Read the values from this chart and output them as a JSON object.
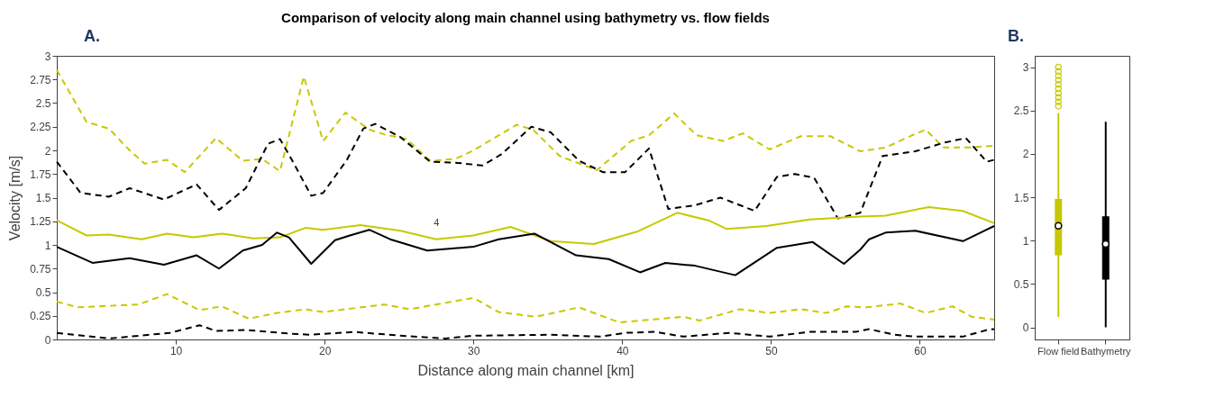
{
  "chart_data": [
    {
      "type": "line",
      "title": "Comparison of velocity along main channel using bathymetry vs. flow fields",
      "xlabel": "Distance along main channel [km]",
      "ylabel": "Velocity [m/s]",
      "annotations": [
        "A.",
        "4"
      ],
      "xlim": [
        2,
        65
      ],
      "ylim": [
        0,
        3
      ],
      "xticks": [
        10,
        20,
        30,
        40,
        50,
        60
      ],
      "yticks": [
        0,
        0.25,
        0.5,
        0.75,
        1,
        1.25,
        1.5,
        1.75,
        2,
        2.25,
        2.5,
        2.75,
        3
      ],
      "series": [
        {
          "color": "#c8c800",
          "line_style": "dashed",
          "x": [
            2,
            4,
            5.5,
            6.9,
            7.9,
            9.4,
            10.6,
            12.7,
            14.5,
            15.8,
            17,
            18.6,
            19.9,
            21.4,
            23,
            24,
            25.5,
            27.1,
            28.8,
            30,
            32.9,
            34,
            35.8,
            38.3,
            40.6,
            41.8,
            43.5,
            45,
            46.8,
            48.1,
            49.9,
            52,
            54,
            56,
            57.7,
            59.5,
            60.4,
            61.6,
            63.3,
            65
          ],
          "values": [
            2.85,
            2.3,
            2.23,
            2,
            1.86,
            1.9,
            1.77,
            2.13,
            1.89,
            1.91,
            1.78,
            2.78,
            2.1,
            2.4,
            2.22,
            2.17,
            2.12,
            1.89,
            1.91,
            2.0,
            2.27,
            2.22,
            1.94,
            1.79,
            2.1,
            2.16,
            2.39,
            2.16,
            2.1,
            2.18,
            2.01,
            2.15,
            2.15,
            1.99,
            2.03,
            2.16,
            2.22,
            2.03,
            2.03,
            2.05
          ]
        },
        {
          "color": "#000000",
          "line_style": "dashed",
          "x": [
            2,
            3.6,
            5.5,
            6.9,
            9.2,
            11.4,
            12.9,
            14.7,
            16.2,
            17,
            17.8,
            19.1,
            19.9,
            21.5,
            22.6,
            23.4,
            25.1,
            27.1,
            28.8,
            30.6,
            31.9,
            33.9,
            35.2,
            37.1,
            38.7,
            40.2,
            41.8,
            43.1,
            44.9,
            46.6,
            48.9,
            50.4,
            51.6,
            52.9,
            54.5,
            56,
            57.5,
            59.7,
            61.6,
            63.1,
            64.5,
            65
          ],
          "values": [
            1.88,
            1.55,
            1.51,
            1.6,
            1.48,
            1.64,
            1.37,
            1.6,
            2.07,
            2.12,
            1.9,
            1.52,
            1.55,
            1.9,
            2.23,
            2.28,
            2.14,
            1.88,
            1.87,
            1.84,
            1.96,
            2.25,
            2.19,
            1.89,
            1.77,
            1.77,
            2.02,
            1.38,
            1.42,
            1.5,
            1.36,
            1.72,
            1.75,
            1.71,
            1.28,
            1.34,
            1.94,
            1.99,
            2.08,
            2.13,
            1.88,
            1.9
          ]
        },
        {
          "color": "#c8c800",
          "line_style": "solid",
          "x": [
            2,
            4,
            5.5,
            7.7,
            9.4,
            11.2,
            13.1,
            15.2,
            17,
            18.7,
            19.9,
            22.4,
            25.1,
            27.5,
            30,
            32.5,
            35.2,
            38.1,
            41,
            43.7,
            45.8,
            47,
            49.7,
            52.6,
            56,
            57.7,
            60.6,
            62.9,
            65
          ],
          "values": [
            1.26,
            1.1,
            1.11,
            1.06,
            1.12,
            1.08,
            1.12,
            1.07,
            1.08,
            1.18,
            1.16,
            1.21,
            1.15,
            1.06,
            1.1,
            1.19,
            1.04,
            1.01,
            1.14,
            1.34,
            1.26,
            1.17,
            1.2,
            1.27,
            1.3,
            1.31,
            1.4,
            1.36,
            1.23
          ]
        },
        {
          "color": "#000000",
          "line_style": "solid",
          "x": [
            2,
            4.4,
            6.9,
            9.2,
            11.4,
            12.9,
            14.5,
            15.8,
            16.8,
            17.6,
            19.1,
            20.7,
            21.7,
            23,
            24.4,
            26.9,
            30,
            31.7,
            34.1,
            36.9,
            39.1,
            41.2,
            42.9,
            44.9,
            47.6,
            50.4,
            52.8,
            54.9,
            56,
            56.6,
            57.7,
            59.7,
            62.9,
            65
          ],
          "values": [
            0.98,
            0.81,
            0.86,
            0.79,
            0.89,
            0.75,
            0.94,
            1.0,
            1.13,
            1.08,
            0.8,
            1.05,
            1.1,
            1.16,
            1.06,
            0.94,
            0.98,
            1.06,
            1.12,
            0.89,
            0.85,
            0.71,
            0.81,
            0.78,
            0.68,
            0.97,
            1.03,
            0.8,
            0.95,
            1.06,
            1.13,
            1.15,
            1.04,
            1.2
          ]
        },
        {
          "color": "#c8c800",
          "line_style": "dashed",
          "x": [
            2,
            3.4,
            7.5,
            9.4,
            11.6,
            13.1,
            14.9,
            16.8,
            18.7,
            19.9,
            24,
            25.7,
            30,
            31.7,
            34.2,
            37.1,
            39.8,
            44.1,
            45.2,
            47.9,
            49.9,
            52,
            53.7,
            55.1,
            56.4,
            58.7,
            60.4,
            62.2,
            63.5,
            65
          ],
          "values": [
            0.4,
            0.34,
            0.37,
            0.48,
            0.31,
            0.35,
            0.22,
            0.28,
            0.32,
            0.29,
            0.37,
            0.32,
            0.44,
            0.29,
            0.24,
            0.34,
            0.18,
            0.24,
            0.2,
            0.32,
            0.28,
            0.32,
            0.28,
            0.35,
            0.34,
            0.38,
            0.28,
            0.35,
            0.24,
            0.21
          ]
        },
        {
          "color": "#000000",
          "line_style": "dashed",
          "x": [
            2,
            5.5,
            9.6,
            11.6,
            12.7,
            14.7,
            17.8,
            19.1,
            22,
            25.1,
            28.1,
            30,
            35.2,
            38.5,
            40.2,
            42.2,
            44.1,
            47.2,
            49.9,
            52.6,
            55.7,
            56.6,
            58.3,
            59.7,
            62.9,
            64.5,
            65
          ],
          "values": [
            0.07,
            0.01,
            0.07,
            0.15,
            0.09,
            0.1,
            0.06,
            0.05,
            0.08,
            0.04,
            0.01,
            0.04,
            0.05,
            0.03,
            0.07,
            0.08,
            0.03,
            0.07,
            0.03,
            0.08,
            0.08,
            0.11,
            0.05,
            0.03,
            0.03,
            0.1,
            0.11
          ]
        }
      ]
    },
    {
      "type": "box",
      "annotations": [
        "B."
      ],
      "categories": [
        "Flow field",
        "Bathymetry"
      ],
      "colors": [
        "#c8c800",
        "#000000"
      ],
      "ylim": [
        -0.14,
        3.13
      ],
      "yticks": [
        0,
        0.5,
        1,
        1.5,
        2,
        2.5,
        3
      ],
      "boxes": [
        {
          "low": 0.12,
          "q1": 0.83,
          "median": 1.17,
          "q3": 1.48,
          "high": 2.47,
          "outliers": [
            2.55,
            2.6,
            2.65,
            2.7,
            2.75,
            2.8,
            2.85,
            2.9,
            2.95,
            3.0
          ]
        },
        {
          "low": 0.0,
          "q1": 0.55,
          "median": 0.96,
          "q3": 1.28,
          "high": 2.37
        }
      ]
    }
  ]
}
